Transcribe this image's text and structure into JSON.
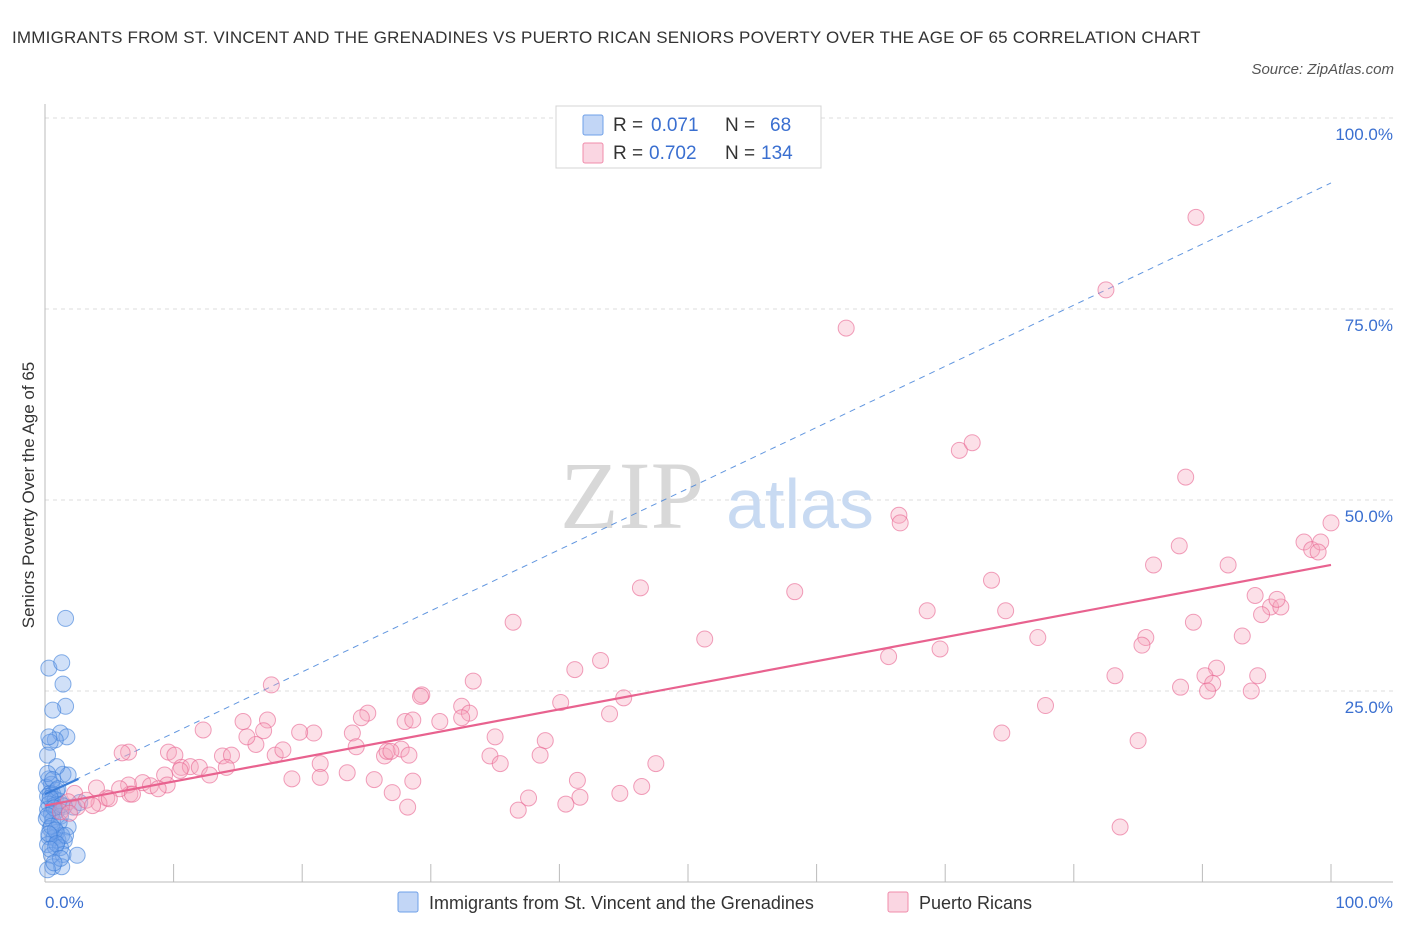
{
  "header": {
    "title": "IMMIGRANTS FROM ST. VINCENT AND THE GRENADINES VS PUERTO RICAN SENIORS POVERTY OVER THE AGE OF 65 CORRELATION CHART",
    "source": "Source: ZipAtlas.com"
  },
  "watermark": {
    "part1": "ZIP",
    "part2": "atlas"
  },
  "legend": {
    "r_label": "R =",
    "n_label": "N =",
    "series": [
      {
        "r": "0.071",
        "n": "68",
        "color": "#6fa0e8"
      },
      {
        "r": "0.702",
        "n": "134",
        "color": "#f08cab"
      }
    ]
  },
  "bottom_legend": [
    {
      "label": "Immigrants from St. Vincent and the Grenadines",
      "color": "#6fa0e8"
    },
    {
      "label": "Puerto Ricans",
      "color": "#f08cab"
    }
  ],
  "chart_data": {
    "type": "scatter",
    "ylabel": "Seniors Poverty Over the Age of 65",
    "xlim": [
      0,
      100
    ],
    "ylim": [
      0,
      100
    ],
    "x_tick_labels": [
      "0.0%",
      "100.0%"
    ],
    "y_tick_labels": [
      "25.0%",
      "50.0%",
      "75.0%",
      "100.0%"
    ],
    "y_ticks": [
      25,
      50,
      75,
      100
    ],
    "grid": true,
    "series": [
      {
        "name": "Immigrants from St. Vincent and the Grenadines",
        "color": "#3b7dd8",
        "fill": "rgba(120,165,235,0.35)",
        "trend": {
          "x": [
            0,
            2.6
          ],
          "y": [
            11.5,
            13.5
          ],
          "style": "solid"
        },
        "ext_trend": {
          "x": [
            0,
            100
          ],
          "y": [
            11.5,
            91.5
          ],
          "style": "dashed"
        },
        "points": [
          [
            1.6,
            34.5
          ],
          [
            0.3,
            28.0
          ],
          [
            1.3,
            28.7
          ],
          [
            1.4,
            25.9
          ],
          [
            1.6,
            23.0
          ],
          [
            0.6,
            22.5
          ],
          [
            1.2,
            19.5
          ],
          [
            1.7,
            19.0
          ],
          [
            0.8,
            18.6
          ],
          [
            0.4,
            18.3
          ],
          [
            0.2,
            16.6
          ],
          [
            1.4,
            14.1
          ],
          [
            1.8,
            14.0
          ],
          [
            0.3,
            13.5
          ],
          [
            0.5,
            12.8
          ],
          [
            0.1,
            12.4
          ],
          [
            0.9,
            12.0
          ],
          [
            0.4,
            11.6
          ],
          [
            0.6,
            11.5
          ],
          [
            0.2,
            11.2
          ],
          [
            0.8,
            10.8
          ],
          [
            1.1,
            10.6
          ],
          [
            0.3,
            10.2
          ],
          [
            0.7,
            10.0
          ],
          [
            1.5,
            9.9
          ],
          [
            0.2,
            9.5
          ],
          [
            0.9,
            9.3
          ],
          [
            0.5,
            8.9
          ],
          [
            1.2,
            8.6
          ],
          [
            0.1,
            8.3
          ],
          [
            0.6,
            8.1
          ],
          [
            1.8,
            7.2
          ],
          [
            0.4,
            7.0
          ],
          [
            0.9,
            6.5
          ],
          [
            1.3,
            6.1
          ],
          [
            0.3,
            5.9
          ],
          [
            0.7,
            5.8
          ],
          [
            1.0,
            5.5
          ],
          [
            1.5,
            5.4
          ],
          [
            0.2,
            4.9
          ],
          [
            0.8,
            4.6
          ],
          [
            1.2,
            4.5
          ],
          [
            0.5,
            3.5
          ],
          [
            1.4,
            3.6
          ],
          [
            2.5,
            3.5
          ],
          [
            0.6,
            2.0
          ],
          [
            1.3,
            2.0
          ],
          [
            0.2,
            1.6
          ],
          [
            0.3,
            19.0
          ],
          [
            0.9,
            15.1
          ],
          [
            0.2,
            14.2
          ],
          [
            0.6,
            13.4
          ],
          [
            1.0,
            12.2
          ],
          [
            0.4,
            11.0
          ],
          [
            1.3,
            10.1
          ],
          [
            0.7,
            9.7
          ],
          [
            0.2,
            8.7
          ],
          [
            1.1,
            7.8
          ],
          [
            0.5,
            7.3
          ],
          [
            0.8,
            6.8
          ],
          [
            1.6,
            6.1
          ],
          [
            0.3,
            6.3
          ],
          [
            2.2,
            9.8
          ],
          [
            2.7,
            10.4
          ],
          [
            0.9,
            5.0
          ],
          [
            0.4,
            4.3
          ],
          [
            1.2,
            3.1
          ],
          [
            0.7,
            2.5
          ]
        ]
      },
      {
        "name": "Puerto Ricans",
        "color": "#e8628f",
        "fill": "rgba(245,165,190,0.35)",
        "trend": {
          "x": [
            0,
            100
          ],
          "y": [
            10.0,
            41.5
          ],
          "style": "solid"
        },
        "points": [
          [
            89.5,
            87.0
          ],
          [
            82.5,
            77.5
          ],
          [
            62.3,
            72.5
          ],
          [
            71.1,
            56.5
          ],
          [
            72.1,
            57.5
          ],
          [
            88.7,
            53.0
          ],
          [
            66.4,
            48.0
          ],
          [
            66.5,
            47.0
          ],
          [
            100,
            47.0
          ],
          [
            97.9,
            44.5
          ],
          [
            98.5,
            43.5
          ],
          [
            99.2,
            44.5
          ],
          [
            99.0,
            43.2
          ],
          [
            88.2,
            44.0
          ],
          [
            86.2,
            41.5
          ],
          [
            92.0,
            41.5
          ],
          [
            73.6,
            39.5
          ],
          [
            58.3,
            38.0
          ],
          [
            46.3,
            38.5
          ],
          [
            94.1,
            37.5
          ],
          [
            95.3,
            36.0
          ],
          [
            96.1,
            36.0
          ],
          [
            95.8,
            37.0
          ],
          [
            94.6,
            35.0
          ],
          [
            68.6,
            35.5
          ],
          [
            74.7,
            35.5
          ],
          [
            36.4,
            34.0
          ],
          [
            85.6,
            32.0
          ],
          [
            85.3,
            31.0
          ],
          [
            77.2,
            32.0
          ],
          [
            51.3,
            31.8
          ],
          [
            89.3,
            34.0
          ],
          [
            93.1,
            32.2
          ],
          [
            69.6,
            30.5
          ],
          [
            65.6,
            29.5
          ],
          [
            43.2,
            29.0
          ],
          [
            41.2,
            27.8
          ],
          [
            91.1,
            28.0
          ],
          [
            94.3,
            27.0
          ],
          [
            90.2,
            27.0
          ],
          [
            90.8,
            26.0
          ],
          [
            88.3,
            25.5
          ],
          [
            90.4,
            25.0
          ],
          [
            93.8,
            25.0
          ],
          [
            83.2,
            27.0
          ],
          [
            33.3,
            26.3
          ],
          [
            17.6,
            25.8
          ],
          [
            29.3,
            24.5
          ],
          [
            29.2,
            24.3
          ],
          [
            32.4,
            23.0
          ],
          [
            40.1,
            23.5
          ],
          [
            45.0,
            24.1
          ],
          [
            43.9,
            22.0
          ],
          [
            25.1,
            22.1
          ],
          [
            24.6,
            21.5
          ],
          [
            33.0,
            22.1
          ],
          [
            28.0,
            21.0
          ],
          [
            28.6,
            21.2
          ],
          [
            15.4,
            21.0
          ],
          [
            17.3,
            21.2
          ],
          [
            77.8,
            23.1
          ],
          [
            32.4,
            21.5
          ],
          [
            30.7,
            21.0
          ],
          [
            17.0,
            19.8
          ],
          [
            12.3,
            19.9
          ],
          [
            23.9,
            19.5
          ],
          [
            16.4,
            18.0
          ],
          [
            20.9,
            19.5
          ],
          [
            15.7,
            19.0
          ],
          [
            19.8,
            19.6
          ],
          [
            74.4,
            19.5
          ],
          [
            35.0,
            19.0
          ],
          [
            85.0,
            18.5
          ],
          [
            38.9,
            18.5
          ],
          [
            9.6,
            17.0
          ],
          [
            10.1,
            16.6
          ],
          [
            13.8,
            16.5
          ],
          [
            14.5,
            16.6
          ],
          [
            26.4,
            16.5
          ],
          [
            24.2,
            17.7
          ],
          [
            14.1,
            15.0
          ],
          [
            17.9,
            16.6
          ],
          [
            27.7,
            17.4
          ],
          [
            26.6,
            17.1
          ],
          [
            34.6,
            16.5
          ],
          [
            26.9,
            17.1
          ],
          [
            18.5,
            17.3
          ],
          [
            35.4,
            15.5
          ],
          [
            28.3,
            16.6
          ],
          [
            38.5,
            16.6
          ],
          [
            21.4,
            15.5
          ],
          [
            10.6,
            15.0
          ],
          [
            11.3,
            15.1
          ],
          [
            6.5,
            17.0
          ],
          [
            6.0,
            16.9
          ],
          [
            23.5,
            14.3
          ],
          [
            9.3,
            14.0
          ],
          [
            10.5,
            14.6
          ],
          [
            12.0,
            15.0
          ],
          [
            12.8,
            14.0
          ],
          [
            6.5,
            12.7
          ],
          [
            7.6,
            13.0
          ],
          [
            8.2,
            12.6
          ],
          [
            9.5,
            12.7
          ],
          [
            19.2,
            13.5
          ],
          [
            21.4,
            13.7
          ],
          [
            25.6,
            13.4
          ],
          [
            4.0,
            12.3
          ],
          [
            2.3,
            11.6
          ],
          [
            4.8,
            11.0
          ],
          [
            6.6,
            11.5
          ],
          [
            8.8,
            12.2
          ],
          [
            5.8,
            12.2
          ],
          [
            27.0,
            11.7
          ],
          [
            28.6,
            13.2
          ],
          [
            41.4,
            13.3
          ],
          [
            46.4,
            12.5
          ],
          [
            44.7,
            11.6
          ],
          [
            37.6,
            11.0
          ],
          [
            41.6,
            11.1
          ],
          [
            4.2,
            10.3
          ],
          [
            1.8,
            10.5
          ],
          [
            2.5,
            9.8
          ],
          [
            3.2,
            10.7
          ],
          [
            5.0,
            10.9
          ],
          [
            6.8,
            11.5
          ],
          [
            3.7,
            10.0
          ],
          [
            28.2,
            9.8
          ],
          [
            1.2,
            9.2
          ],
          [
            1.9,
            9.0
          ],
          [
            36.8,
            9.4
          ],
          [
            40.5,
            10.2
          ],
          [
            83.6,
            7.2
          ],
          [
            47.5,
            15.5
          ]
        ]
      }
    ]
  }
}
